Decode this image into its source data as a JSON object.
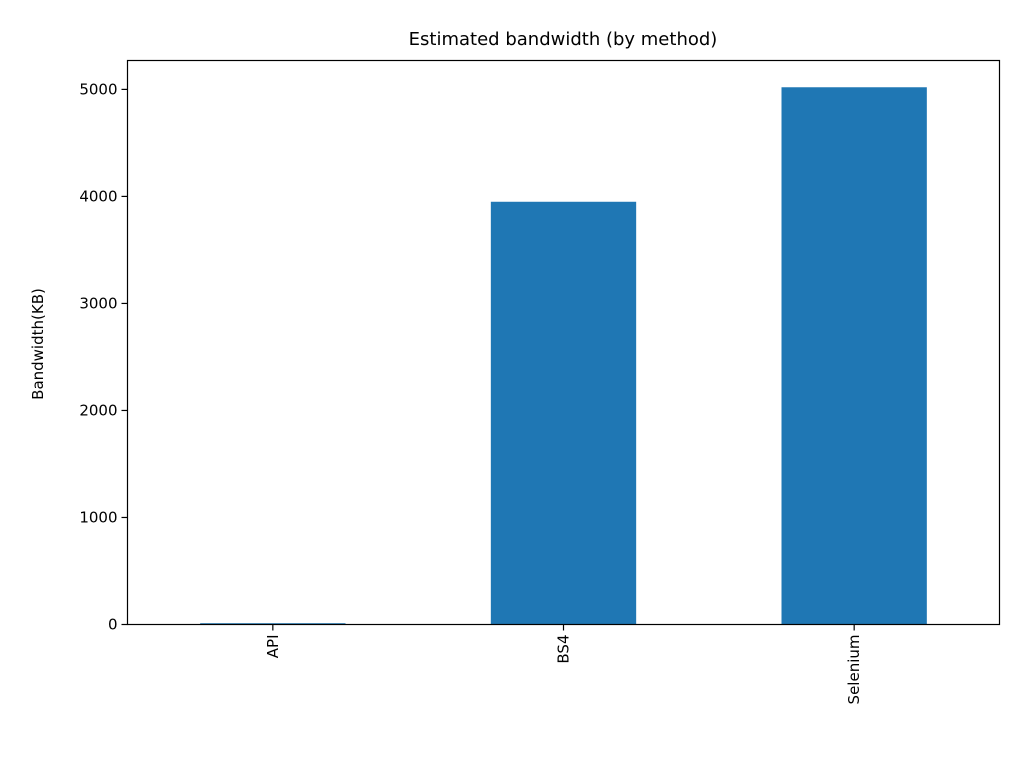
{
  "chart_data": {
    "type": "bar",
    "title": "Estimated bandwidth (by method)",
    "xlabel": "",
    "ylabel": "Bandwidth(KB)",
    "categories": [
      "API",
      "BS4",
      "Selenium"
    ],
    "values": [
      12,
      3950,
      5020
    ],
    "ylim": [
      0,
      5270
    ],
    "yticks": [
      0,
      1000,
      2000,
      3000,
      4000,
      5000
    ],
    "bar_color": "#1f77b4",
    "grid": false,
    "legend": "none"
  }
}
